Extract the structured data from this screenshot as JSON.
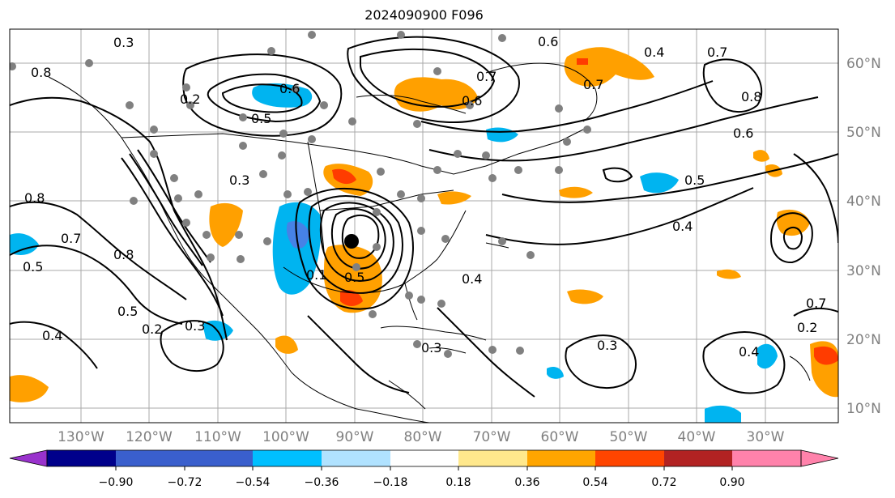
{
  "title": "2024090900 F096",
  "map": {
    "lon_labels": [
      "130°W",
      "120°W",
      "110°W",
      "100°W",
      "90°W",
      "80°W",
      "70°W",
      "60°W",
      "50°W",
      "40°W",
      "30°W"
    ],
    "lat_labels": [
      "60°N",
      "50°N",
      "40°N",
      "30°N",
      "20°N",
      "10°N"
    ],
    "contour_labels": [
      "0.3",
      "0.6",
      "0.7",
      "0.6",
      "0.5",
      "0.7",
      "0.4",
      "0.3",
      "0.2",
      "0.6",
      "0.8",
      "0.5",
      "0.8",
      "0.6",
      "0.5",
      "0.7",
      "0.7",
      "0.4",
      "0.8",
      "0.5",
      "0.3",
      "0.2",
      "0.1",
      "0.4",
      "0.4",
      "0.5",
      "0.7",
      "0.8",
      "0.4",
      "0.3",
      "0.3",
      "0.2"
    ],
    "colors": {
      "neg_strong": "#0000b4",
      "neg_mid": "#4682e6",
      "neg_light": "#00b4f0",
      "neg_faint": "#a0dcff",
      "pos_faint": "#ffe68c",
      "pos_light": "#ffa000",
      "pos_mid": "#ff3c00",
      "pos_strong": "#b41e1e"
    }
  },
  "colorbar": {
    "ticks": [
      "−0.90",
      "−0.72",
      "−0.54",
      "−0.36",
      "−0.18",
      "0.18",
      "0.36",
      "0.54",
      "0.72",
      "0.90"
    ],
    "colors": [
      "#9932cc",
      "#00008b",
      "#3a5fcd",
      "#00bfff",
      "#b0e2ff",
      "#ffffff",
      "#ffe88c",
      "#ffa500",
      "#ff4500",
      "#b22222",
      "#ff82ab"
    ]
  }
}
